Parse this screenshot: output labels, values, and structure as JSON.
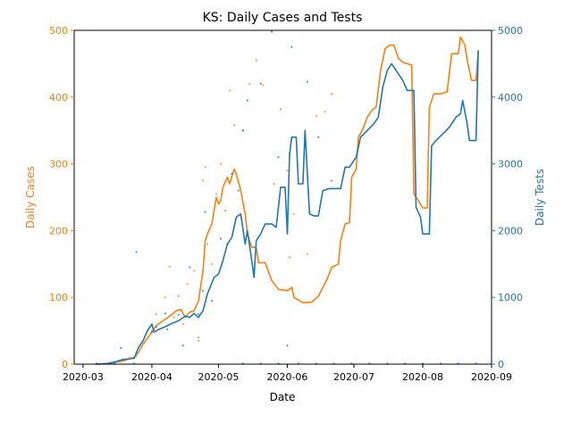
{
  "chart_data": {
    "type": "line",
    "title": "KS: Daily Cases and Tests",
    "xlabel": "Date",
    "ylabel_left": "Daily Cases",
    "ylabel_right": "Daily Tests",
    "xlim": [
      "2020-02-26",
      "2020-09-01"
    ],
    "ylim_left": [
      0,
      500
    ],
    "ylim_right": [
      0,
      5000
    ],
    "x_ticks": [
      "2020-03",
      "2020-04",
      "2020-05",
      "2020-06",
      "2020-07",
      "2020-08",
      "2020-09"
    ],
    "y_ticks_left": [
      "0",
      "100",
      "200",
      "300",
      "400",
      "500"
    ],
    "y_ticks_right": [
      "0",
      "1000",
      "2000",
      "3000",
      "4000",
      "5000"
    ],
    "grid": false,
    "legend": "none",
    "colors": {
      "cases": "#ff7f0e",
      "tests": "#1f77b4",
      "axis": "#000000"
    },
    "series": [
      {
        "axis": "left",
        "style": "line",
        "color": "#ff7f0e",
        "points": [
          [
            "2020-03-07",
            0
          ],
          [
            "2020-03-12",
            1
          ],
          [
            "2020-03-16",
            3
          ],
          [
            "2020-03-19",
            5
          ],
          [
            "2020-03-22",
            8
          ],
          [
            "2020-03-24",
            10
          ],
          [
            "2020-03-26",
            18
          ],
          [
            "2020-03-28",
            30
          ],
          [
            "2020-04-01",
            48
          ],
          [
            "2020-04-03",
            58
          ],
          [
            "2020-04-06",
            65
          ],
          [
            "2020-04-09",
            72
          ],
          [
            "2020-04-12",
            80
          ],
          [
            "2020-04-14",
            82
          ],
          [
            "2020-04-16",
            70
          ],
          [
            "2020-04-18",
            78
          ],
          [
            "2020-04-20",
            80
          ],
          [
            "2020-04-22",
            95
          ],
          [
            "2020-04-24",
            140
          ],
          [
            "2020-04-25",
            185
          ],
          [
            "2020-04-26",
            195
          ],
          [
            "2020-04-28",
            210
          ],
          [
            "2020-04-30",
            250
          ],
          [
            "2020-05-01",
            240
          ],
          [
            "2020-05-02",
            245
          ],
          [
            "2020-05-03",
            265
          ],
          [
            "2020-05-05",
            280
          ],
          [
            "2020-05-06",
            270
          ],
          [
            "2020-05-08",
            292
          ],
          [
            "2020-05-09",
            285
          ],
          [
            "2020-05-11",
            260
          ],
          [
            "2020-05-13",
            225
          ],
          [
            "2020-05-14",
            195
          ],
          [
            "2020-05-16",
            175
          ],
          [
            "2020-05-18",
            175
          ],
          [
            "2020-05-19",
            152
          ],
          [
            "2020-05-22",
            152
          ],
          [
            "2020-05-25",
            125
          ],
          [
            "2020-05-28",
            112
          ],
          [
            "2020-06-01",
            110
          ],
          [
            "2020-06-03",
            115
          ],
          [
            "2020-06-04",
            100
          ],
          [
            "2020-06-05",
            98
          ],
          [
            "2020-06-08",
            92
          ],
          [
            "2020-06-12",
            93
          ],
          [
            "2020-06-15",
            102
          ],
          [
            "2020-06-17",
            115
          ],
          [
            "2020-06-19",
            128
          ],
          [
            "2020-06-21",
            145
          ],
          [
            "2020-06-24",
            150
          ],
          [
            "2020-06-25",
            185
          ],
          [
            "2020-06-27",
            210
          ],
          [
            "2020-06-29",
            212
          ],
          [
            "2020-06-30",
            280
          ],
          [
            "2020-07-02",
            292
          ],
          [
            "2020-07-03",
            340
          ],
          [
            "2020-07-05",
            352
          ],
          [
            "2020-07-07",
            370
          ],
          [
            "2020-07-09",
            380
          ],
          [
            "2020-07-11",
            385
          ],
          [
            "2020-07-13",
            440
          ],
          [
            "2020-07-15",
            472
          ],
          [
            "2020-07-17",
            478
          ],
          [
            "2020-07-19",
            478
          ],
          [
            "2020-07-21",
            458
          ],
          [
            "2020-07-23",
            452
          ],
          [
            "2020-07-25",
            450
          ],
          [
            "2020-07-27",
            448
          ],
          [
            "2020-07-28",
            255
          ],
          [
            "2020-07-30",
            245
          ],
          [
            "2020-08-01",
            234
          ],
          [
            "2020-08-03",
            234
          ],
          [
            "2020-08-04",
            385
          ],
          [
            "2020-08-06",
            405
          ],
          [
            "2020-08-09",
            405
          ],
          [
            "2020-08-12",
            408
          ],
          [
            "2020-08-14",
            465
          ],
          [
            "2020-08-17",
            465
          ],
          [
            "2020-08-18",
            490
          ],
          [
            "2020-08-20",
            478
          ],
          [
            "2020-08-21",
            455
          ],
          [
            "2020-08-23",
            425
          ],
          [
            "2020-08-25",
            425
          ],
          [
            "2020-08-26",
            470
          ]
        ]
      },
      {
        "axis": "right",
        "style": "line",
        "color": "#1f77b4",
        "points": [
          [
            "2020-03-07",
            0
          ],
          [
            "2020-03-12",
            10
          ],
          [
            "2020-03-16",
            40
          ],
          [
            "2020-03-19",
            70
          ],
          [
            "2020-03-22",
            80
          ],
          [
            "2020-03-24",
            90
          ],
          [
            "2020-03-26",
            250
          ],
          [
            "2020-03-28",
            350
          ],
          [
            "2020-03-30",
            500
          ],
          [
            "2020-04-01",
            600
          ],
          [
            "2020-04-02",
            480
          ],
          [
            "2020-04-04",
            520
          ],
          [
            "2020-04-07",
            560
          ],
          [
            "2020-04-10",
            610
          ],
          [
            "2020-04-13",
            650
          ],
          [
            "2020-04-16",
            720
          ],
          [
            "2020-04-18",
            700
          ],
          [
            "2020-04-20",
            760
          ],
          [
            "2020-04-22",
            700
          ],
          [
            "2020-04-24",
            800
          ],
          [
            "2020-04-26",
            1050
          ],
          [
            "2020-04-29",
            1300
          ],
          [
            "2020-05-01",
            1350
          ],
          [
            "2020-05-03",
            1550
          ],
          [
            "2020-05-05",
            1800
          ],
          [
            "2020-05-07",
            1900
          ],
          [
            "2020-05-09",
            2200
          ],
          [
            "2020-05-11",
            2250
          ],
          [
            "2020-05-13",
            1800
          ],
          [
            "2020-05-14",
            2000
          ],
          [
            "2020-05-16",
            1550
          ],
          [
            "2020-05-17",
            1300
          ],
          [
            "2020-05-18",
            1850
          ],
          [
            "2020-05-20",
            1950
          ],
          [
            "2020-05-22",
            2100
          ],
          [
            "2020-05-25",
            2100
          ],
          [
            "2020-05-27",
            2050
          ],
          [
            "2020-05-29",
            2650
          ],
          [
            "2020-05-31",
            2650
          ],
          [
            "2020-06-01",
            1950
          ],
          [
            "2020-06-02",
            3150
          ],
          [
            "2020-06-03",
            3400
          ],
          [
            "2020-06-05",
            3400
          ],
          [
            "2020-06-06",
            2700
          ],
          [
            "2020-06-08",
            2700
          ],
          [
            "2020-06-09",
            3500
          ],
          [
            "2020-06-11",
            2250
          ],
          [
            "2020-06-13",
            2220
          ],
          [
            "2020-06-15",
            2220
          ],
          [
            "2020-06-17",
            2600
          ],
          [
            "2020-06-20",
            2630
          ],
          [
            "2020-06-23",
            2630
          ],
          [
            "2020-06-25",
            2630
          ],
          [
            "2020-06-27",
            2950
          ],
          [
            "2020-06-29",
            2950
          ],
          [
            "2020-07-02",
            3100
          ],
          [
            "2020-07-04",
            3400
          ],
          [
            "2020-07-07",
            3500
          ],
          [
            "2020-07-10",
            3600
          ],
          [
            "2020-07-12",
            3700
          ],
          [
            "2020-07-14",
            4150
          ],
          [
            "2020-07-16",
            4400
          ],
          [
            "2020-07-18",
            4500
          ],
          [
            "2020-07-20",
            4400
          ],
          [
            "2020-07-23",
            4250
          ],
          [
            "2020-07-25",
            4100
          ],
          [
            "2020-07-28",
            4100
          ],
          [
            "2020-07-29",
            2350
          ],
          [
            "2020-07-31",
            2200
          ],
          [
            "2020-08-01",
            1950
          ],
          [
            "2020-08-04",
            1950
          ],
          [
            "2020-08-05",
            3270
          ],
          [
            "2020-08-07",
            3350
          ],
          [
            "2020-08-10",
            3450
          ],
          [
            "2020-08-13",
            3550
          ],
          [
            "2020-08-16",
            3700
          ],
          [
            "2020-08-18",
            3750
          ],
          [
            "2020-08-19",
            3950
          ],
          [
            "2020-08-21",
            3600
          ],
          [
            "2020-08-22",
            3350
          ],
          [
            "2020-08-25",
            3350
          ],
          [
            "2020-08-26",
            4700
          ]
        ]
      },
      {
        "axis": "left",
        "style": "scatter",
        "color": "#ff7f0e",
        "points": [
          [
            "2020-03-22",
            10
          ],
          [
            "2020-03-25",
            12
          ],
          [
            "2020-04-01",
            50
          ],
          [
            "2020-04-03",
            75
          ],
          [
            "2020-04-07",
            100
          ],
          [
            "2020-04-09",
            146
          ],
          [
            "2020-04-11",
            70
          ],
          [
            "2020-04-13",
            102
          ],
          [
            "2020-04-15",
            60
          ],
          [
            "2020-04-17",
            120
          ],
          [
            "2020-04-20",
            140
          ],
          [
            "2020-04-22",
            35
          ],
          [
            "2020-04-22",
            40
          ],
          [
            "2020-04-24",
            275
          ],
          [
            "2020-04-25",
            295
          ],
          [
            "2020-04-26",
            180
          ],
          [
            "2020-04-28",
            150
          ],
          [
            "2020-04-30",
            255
          ],
          [
            "2020-05-02",
            300
          ],
          [
            "2020-05-04",
            230
          ],
          [
            "2020-05-06",
            410
          ],
          [
            "2020-05-08",
            358
          ],
          [
            "2020-05-12",
            350
          ],
          [
            "2020-05-15",
            420
          ],
          [
            "2020-05-18",
            455
          ],
          [
            "2020-05-21",
            418
          ],
          [
            "2020-05-26",
            270
          ],
          [
            "2020-05-29",
            382
          ],
          [
            "2020-06-01",
            290
          ],
          [
            "2020-06-02",
            160
          ],
          [
            "2020-06-04",
            225
          ],
          [
            "2020-06-10",
            165
          ],
          [
            "2020-06-14",
            372
          ],
          [
            "2020-06-18",
            378
          ],
          [
            "2020-06-21",
            405
          ]
        ]
      },
      {
        "axis": "right",
        "style": "scatter",
        "color": "#1f77b4",
        "points": [
          [
            "2020-03-18",
            240
          ],
          [
            "2020-03-25",
            1680
          ],
          [
            "2020-04-01",
            480
          ],
          [
            "2020-04-03",
            560
          ],
          [
            "2020-04-07",
            760
          ],
          [
            "2020-04-08",
            520
          ],
          [
            "2020-04-13",
            740
          ],
          [
            "2020-04-15",
            280
          ],
          [
            "2020-04-18",
            1450
          ],
          [
            "2020-04-22",
            750
          ],
          [
            "2020-04-24",
            1100
          ],
          [
            "2020-04-25",
            2280
          ],
          [
            "2020-04-28",
            950
          ],
          [
            "2020-05-02",
            1880
          ],
          [
            "2020-05-05",
            1800
          ],
          [
            "2020-05-07",
            2850
          ],
          [
            "2020-05-10",
            2600
          ],
          [
            "2020-05-12",
            3500
          ],
          [
            "2020-05-14",
            3950
          ],
          [
            "2020-05-20",
            4200
          ],
          [
            "2020-05-25",
            4980
          ],
          [
            "2020-05-28",
            3100
          ],
          [
            "2020-06-01",
            280
          ],
          [
            "2020-06-03",
            4750
          ],
          [
            "2020-06-10",
            4230
          ],
          [
            "2020-06-15",
            3400
          ],
          [
            "2020-06-21",
            2750
          ]
        ]
      },
      {
        "axis": "left",
        "style": "baseline",
        "color": "#1f77b4",
        "dates": [
          "2020-03-07",
          "2020-03-15",
          "2020-03-24",
          "2020-05-12",
          "2020-05-20",
          "2020-05-28",
          "2020-06-06",
          "2020-06-14",
          "2020-06-22",
          "2020-06-30",
          "2020-07-08",
          "2020-07-16",
          "2020-07-24",
          "2020-08-01",
          "2020-08-09",
          "2020-08-17",
          "2020-08-25"
        ]
      }
    ]
  }
}
